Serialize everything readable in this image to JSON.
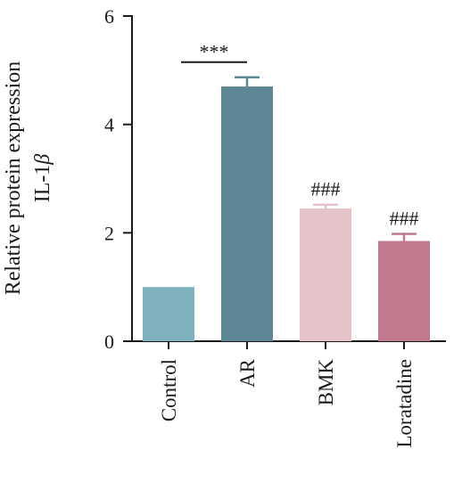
{
  "chart_data": {
    "type": "bar",
    "categories": [
      "Control",
      "AR",
      "BMK",
      "Loratadine"
    ],
    "values": [
      1.0,
      4.7,
      2.45,
      1.85
    ],
    "errors": [
      0.0,
      0.17,
      0.07,
      0.13
    ],
    "colors": [
      "#7fb1bf",
      "#5e8796",
      "#e6c3c9",
      "#c07a8d"
    ],
    "ylabel_line1": "Relative protein expression",
    "ylabel_line2_prefix": "IL-1",
    "ylabel_line2_symbol": "β",
    "ylim": [
      0,
      6
    ],
    "yticks": [
      0,
      2,
      4,
      6
    ],
    "annotations": [
      {
        "category": "AR",
        "text": "***",
        "comparison_line": true
      },
      {
        "category": "BMK",
        "text": "###"
      },
      {
        "category": "Loratadine",
        "text": "###"
      }
    ],
    "grid": false,
    "legend": "none"
  }
}
